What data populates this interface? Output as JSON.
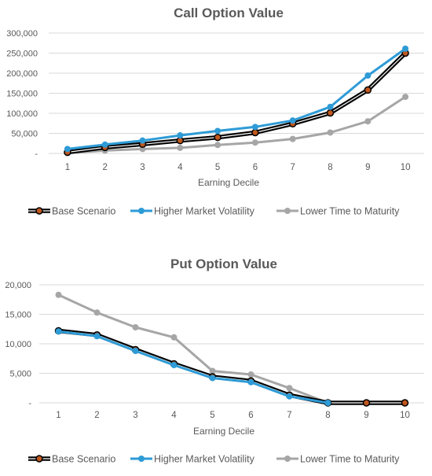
{
  "chart_data": [
    {
      "type": "line",
      "title": "Call Option Value",
      "xlabel": "Earning Decile",
      "ylabel": "",
      "categories": [
        "1",
        "2",
        "3",
        "4",
        "5",
        "6",
        "7",
        "8",
        "9",
        "10"
      ],
      "y_ticks": [
        "-",
        "50,000",
        "100,000",
        "150,000",
        "200,000",
        "250,000",
        "300,000"
      ],
      "ylim": [
        0,
        300000
      ],
      "grid": true,
      "legend": "bottom",
      "series": [
        {
          "name": "Base Scenario",
          "color": "#000000",
          "marker_color": "#c0571e",
          "style": "outlined",
          "values": [
            3000,
            15000,
            23000,
            32000,
            40000,
            52000,
            74000,
            101000,
            158000,
            250000
          ]
        },
        {
          "name": "Higher Market Volatility",
          "color": "#2e9bd6",
          "marker_color": "#2e9bd6",
          "style": "solid",
          "values": [
            11000,
            22000,
            32000,
            45000,
            56000,
            66000,
            82000,
            116000,
            194000,
            261000
          ]
        },
        {
          "name": "Lower Time to Maturity",
          "color": "#a6a6a6",
          "marker_color": "#a6a6a6",
          "style": "solid",
          "values": [
            1000,
            7000,
            11000,
            14000,
            21000,
            27000,
            36000,
            52000,
            80000,
            141000
          ]
        }
      ]
    },
    {
      "type": "line",
      "title": "Put Option Value",
      "xlabel": "Earning Decile",
      "ylabel": "",
      "categories": [
        "1",
        "2",
        "3",
        "4",
        "5",
        "6",
        "7",
        "8",
        "9",
        "10"
      ],
      "y_ticks": [
        "-",
        "5,000",
        "10,000",
        "15,000",
        "20,000"
      ],
      "ylim": [
        0,
        20000
      ],
      "grid": true,
      "legend": "bottom",
      "series": [
        {
          "name": "Base Scenario",
          "color": "#000000",
          "marker_color": "#c0571e",
          "style": "outlined",
          "values": [
            12200,
            11500,
            9000,
            6600,
            4400,
            3700,
            1300,
            0,
            0,
            0
          ]
        },
        {
          "name": "Higher Market Volatility",
          "color": "#2e9bd6",
          "marker_color": "#2e9bd6",
          "style": "solid",
          "values": [
            12100,
            11300,
            8800,
            6400,
            4200,
            3500,
            1100,
            0,
            null,
            null
          ]
        },
        {
          "name": "Lower Time to Maturity",
          "color": "#a6a6a6",
          "marker_color": "#a6a6a6",
          "style": "solid",
          "values": [
            18300,
            15300,
            12800,
            11100,
            5400,
            4800,
            2500,
            0,
            0,
            0
          ]
        }
      ]
    }
  ]
}
